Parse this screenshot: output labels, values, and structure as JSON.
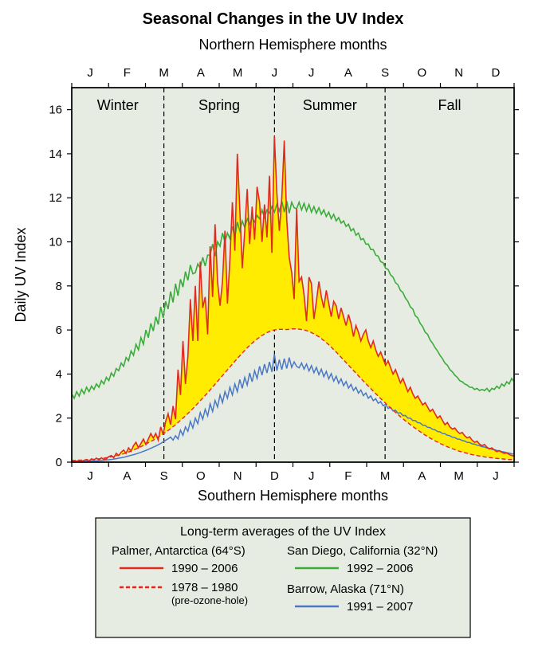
{
  "title": "Seasonal Changes in the UV Index",
  "title_fontsize": 20,
  "title_weight": "bold",
  "top_axis_label": "Northern Hemisphere months",
  "bottom_axis_label": "Southern Hemisphere months",
  "y_axis_label": "Daily UV Index",
  "top_month_letters": [
    "J",
    "F",
    "M",
    "A",
    "M",
    "J",
    "J",
    "A",
    "S",
    "O",
    "N",
    "D"
  ],
  "bottom_month_letters": [
    "J",
    "A",
    "S",
    "O",
    "N",
    "D",
    "J",
    "F",
    "M",
    "A",
    "M",
    "J"
  ],
  "season_labels": [
    "Winter",
    "Spring",
    "Summer",
    "Fall"
  ],
  "season_divider_positions": [
    2.5,
    5.5,
    8.5
  ],
  "season_label_fontsize": 18,
  "axis_label_fontsize": 18,
  "tick_fontsize": 15,
  "y": {
    "min": 0,
    "max": 17,
    "tick_step": 2
  },
  "x": {
    "min": 0,
    "max": 12
  },
  "plot_bg": "#e7ece3",
  "page_bg": "#ffffff",
  "axis_color": "#000000",
  "divider_dash": "6,4",
  "fill_between_color": "#ffec00",
  "series": {
    "palmer_recent": {
      "color": "#e12a1f",
      "width": 1.6,
      "dash": "none",
      "data": [
        0.1,
        0.05,
        0.05,
        0.08,
        0.05,
        0.08,
        0.12,
        0.05,
        0.15,
        0.1,
        0.18,
        0.1,
        0.2,
        0.12,
        0.15,
        0.25,
        0.3,
        0.2,
        0.4,
        0.3,
        0.45,
        0.55,
        0.4,
        0.65,
        0.5,
        0.75,
        0.9,
        0.65,
        0.85,
        1.05,
        0.8,
        1.05,
        1.3,
        1.1,
        1.3,
        1.0,
        1.6,
        1.25,
        1.85,
        2.2,
        1.7,
        2.55,
        1.95,
        4.2,
        3.05,
        5.5,
        3.55,
        4.8,
        7.4,
        5.5,
        8.0,
        5.5,
        9.1,
        7.0,
        7.5,
        5.8,
        9.8,
        7.5,
        10.8,
        8.2,
        7.1,
        8.2,
        10.5,
        7.2,
        9.2,
        11.8,
        9.6,
        14.0,
        11.5,
        8.8,
        10.5,
        12.4,
        9.9,
        11.6,
        10.1,
        12.5,
        11.8,
        10.0,
        11.7,
        10.2,
        13.0,
        9.5,
        14.8,
        12.2,
        10.5,
        12.0,
        14.6,
        11.0,
        9.3,
        8.6,
        7.4,
        11.5,
        8.2,
        8.4,
        7.6,
        6.4,
        8.4,
        8.1,
        6.5,
        7.3,
        8.2,
        7.5,
        7.0,
        7.8,
        7.2,
        6.6,
        7.3,
        7.1,
        6.5,
        7.0,
        6.6,
        6.2,
        6.7,
        6.3,
        5.7,
        6.2,
        5.9,
        5.5,
        5.8,
        6.0,
        5.5,
        5.2,
        5.5,
        5.1,
        4.8,
        5.0,
        4.7,
        4.4,
        4.6,
        4.3,
        4.0,
        4.2,
        3.9,
        3.6,
        3.8,
        3.5,
        3.2,
        3.4,
        3.1,
        2.9,
        3.0,
        2.8,
        2.6,
        2.7,
        2.5,
        2.3,
        2.4,
        2.2,
        2.0,
        2.1,
        1.9,
        1.7,
        1.8,
        1.6,
        1.5,
        1.55,
        1.4,
        1.3,
        1.35,
        1.2,
        1.1,
        1.15,
        1.0,
        0.9,
        0.95,
        0.82,
        0.75,
        0.8,
        0.68,
        0.6,
        0.65,
        0.55,
        0.48,
        0.52,
        0.45,
        0.4,
        0.42,
        0.35,
        0.3,
        0.28
      ]
    },
    "palmer_pre": {
      "color": "#e12a1f",
      "width": 1.4,
      "dash": "5,3",
      "data": [
        0.08,
        0.08,
        0.08,
        0.09,
        0.09,
        0.1,
        0.1,
        0.11,
        0.12,
        0.13,
        0.14,
        0.15,
        0.16,
        0.18,
        0.2,
        0.22,
        0.24,
        0.26,
        0.29,
        0.32,
        0.35,
        0.38,
        0.42,
        0.46,
        0.5,
        0.55,
        0.6,
        0.65,
        0.7,
        0.76,
        0.82,
        0.88,
        0.94,
        1.0,
        1.07,
        1.14,
        1.21,
        1.28,
        1.36,
        1.44,
        1.52,
        1.61,
        1.7,
        1.8,
        1.9,
        2.0,
        2.1,
        2.21,
        2.32,
        2.43,
        2.55,
        2.67,
        2.79,
        2.91,
        3.03,
        3.15,
        3.28,
        3.41,
        3.54,
        3.67,
        3.8,
        3.93,
        4.06,
        4.19,
        4.32,
        4.45,
        4.58,
        4.71,
        4.83,
        4.95,
        5.07,
        5.19,
        5.3,
        5.4,
        5.5,
        5.59,
        5.67,
        5.75,
        5.82,
        5.88,
        5.93,
        5.97,
        6.0,
        6.02,
        6.03,
        6.03,
        6.02,
        6.02,
        6.03,
        6.05,
        6.05,
        6.05,
        6.04,
        6.02,
        6.0,
        5.97,
        5.93,
        5.88,
        5.82,
        5.76,
        5.69,
        5.61,
        5.52,
        5.43,
        5.33,
        5.22,
        5.11,
        5.0,
        4.88,
        4.76,
        4.64,
        4.52,
        4.4,
        4.28,
        4.16,
        4.04,
        3.92,
        3.8,
        3.68,
        3.57,
        3.45,
        3.34,
        3.22,
        3.11,
        3.0,
        2.89,
        2.78,
        2.67,
        2.56,
        2.46,
        2.36,
        2.26,
        2.16,
        2.06,
        1.97,
        1.88,
        1.79,
        1.7,
        1.62,
        1.54,
        1.46,
        1.38,
        1.3,
        1.23,
        1.16,
        1.09,
        1.03,
        0.97,
        0.91,
        0.85,
        0.8,
        0.75,
        0.7,
        0.65,
        0.61,
        0.57,
        0.53,
        0.49,
        0.46,
        0.43,
        0.4,
        0.37,
        0.34,
        0.32,
        0.3,
        0.28,
        0.26,
        0.24,
        0.22,
        0.21,
        0.2,
        0.18,
        0.17,
        0.16,
        0.15,
        0.14,
        0.13,
        0.12,
        0.12,
        0.11
      ]
    },
    "sandiego": {
      "color": "#3bab3b",
      "width": 1.6,
      "dash": "none",
      "data": [
        3.1,
        2.9,
        3.2,
        3.0,
        3.3,
        3.1,
        3.4,
        3.2,
        3.45,
        3.3,
        3.55,
        3.4,
        3.7,
        3.55,
        3.85,
        3.7,
        4.05,
        3.9,
        4.25,
        4.15,
        4.5,
        4.35,
        4.75,
        4.6,
        5.05,
        4.85,
        5.35,
        5.1,
        5.65,
        5.35,
        6.0,
        5.65,
        6.3,
        5.95,
        6.6,
        6.25,
        7.05,
        6.55,
        7.3,
        6.95,
        7.75,
        7.25,
        8.1,
        7.55,
        8.3,
        7.95,
        8.65,
        8.25,
        8.95,
        8.55,
        8.6,
        9.0,
        8.8,
        9.3,
        8.9,
        9.4,
        9.4,
        9.9,
        9.35,
        10.0,
        9.8,
        10.4,
        10.0,
        10.4,
        10.15,
        10.7,
        10.2,
        10.9,
        10.5,
        10.95,
        10.65,
        11.05,
        10.8,
        11.1,
        10.9,
        11.2,
        11.05,
        11.45,
        11.1,
        11.45,
        11.3,
        11.6,
        11.35,
        11.7,
        11.4,
        11.85,
        11.35,
        11.85,
        11.3,
        11.8,
        11.55,
        11.5,
        11.8,
        11.45,
        11.75,
        11.4,
        11.7,
        11.35,
        11.6,
        11.3,
        11.55,
        11.25,
        11.45,
        11.15,
        11.35,
        11.05,
        11.25,
        10.95,
        11.1,
        10.85,
        10.95,
        10.7,
        10.8,
        10.5,
        10.6,
        10.3,
        10.4,
        10.1,
        10.15,
        9.9,
        9.9,
        9.65,
        9.65,
        9.4,
        9.35,
        9.1,
        9.05,
        8.8,
        8.75,
        8.5,
        8.4,
        8.15,
        8.05,
        7.8,
        7.7,
        7.45,
        7.3,
        7.05,
        6.95,
        6.65,
        6.55,
        6.3,
        6.15,
        5.9,
        5.8,
        5.55,
        5.4,
        5.2,
        5.05,
        4.85,
        4.7,
        4.5,
        4.4,
        4.2,
        4.1,
        3.95,
        3.85,
        3.7,
        3.65,
        3.55,
        3.5,
        3.4,
        3.4,
        3.3,
        3.35,
        3.25,
        3.3,
        3.25,
        3.35,
        3.2,
        3.35,
        3.3,
        3.45,
        3.35,
        3.55,
        3.45,
        3.65,
        3.55,
        3.8,
        3.65
      ]
    },
    "barrow": {
      "color": "#4b78c4",
      "width": 1.5,
      "dash": "none",
      "data": [
        0.02,
        0.02,
        0.02,
        0.03,
        0.03,
        0.03,
        0.04,
        0.04,
        0.05,
        0.05,
        0.06,
        0.07,
        0.08,
        0.09,
        0.1,
        0.11,
        0.12,
        0.14,
        0.16,
        0.18,
        0.2,
        0.22,
        0.25,
        0.28,
        0.31,
        0.34,
        0.37,
        0.41,
        0.45,
        0.49,
        0.53,
        0.58,
        0.63,
        0.68,
        0.73,
        0.79,
        0.85,
        0.92,
        0.99,
        1.06,
        1.14,
        1.0,
        1.2,
        1.05,
        1.45,
        1.22,
        1.6,
        1.4,
        1.85,
        1.55,
        2.0,
        1.75,
        2.25,
        1.95,
        2.4,
        2.1,
        2.65,
        2.3,
        2.8,
        2.5,
        3.05,
        2.7,
        3.2,
        2.9,
        3.4,
        3.05,
        3.55,
        3.2,
        3.75,
        3.35,
        3.85,
        3.5,
        4.05,
        3.65,
        4.15,
        3.8,
        4.35,
        3.95,
        4.45,
        4.05,
        4.55,
        4.1,
        4.9,
        4.15,
        4.65,
        4.2,
        4.7,
        4.25,
        4.75,
        4.3,
        4.55,
        4.35,
        4.28,
        4.5,
        4.22,
        4.45,
        4.14,
        4.38,
        4.06,
        4.3,
        3.97,
        4.22,
        3.88,
        4.12,
        3.78,
        4.02,
        3.68,
        3.9,
        3.58,
        3.78,
        3.47,
        3.66,
        3.36,
        3.53,
        3.25,
        3.4,
        3.13,
        3.27,
        3.02,
        3.14,
        2.9,
        3.01,
        2.79,
        2.88,
        2.67,
        2.75,
        2.56,
        2.62,
        2.44,
        2.49,
        2.33,
        2.36,
        2.22,
        2.24,
        2.11,
        2.12,
        2.0,
        2.0,
        1.89,
        1.89,
        1.79,
        1.78,
        1.68,
        1.67,
        1.58,
        1.57,
        1.49,
        1.47,
        1.39,
        1.38,
        1.3,
        1.29,
        1.22,
        1.2,
        1.13,
        1.12,
        1.05,
        1.04,
        0.98,
        0.96,
        0.9,
        0.89,
        0.83,
        0.82,
        0.77,
        0.75,
        0.7,
        0.69,
        0.64,
        0.63,
        0.58,
        0.57,
        0.53,
        0.52,
        0.48,
        0.46,
        0.43,
        0.41,
        0.38,
        0.36
      ]
    }
  },
  "legend": {
    "title": "Long-term averages of the UV Index",
    "bg": "#e7ece3",
    "border": "#000000",
    "fontsize_title": 16,
    "fontsize_label": 15,
    "items": [
      {
        "headline": "Palmer, Antarctica (64°S)",
        "lines": [
          {
            "label": "1990 – 2006",
            "color": "#e12a1f",
            "dash": "none"
          },
          {
            "label": "1978 – 1980",
            "sublabel": "(pre-ozone-hole)",
            "color": "#e12a1f",
            "dash": "5,3"
          }
        ]
      },
      {
        "headline": "San Diego, California (32°N)",
        "lines": [
          {
            "label": "1992 – 2006",
            "color": "#3bab3b",
            "dash": "none"
          }
        ]
      },
      {
        "headline": "Barrow, Alaska (71°N)",
        "lines": [
          {
            "label": "1991 – 2007",
            "color": "#4b78c4",
            "dash": "none"
          }
        ]
      }
    ]
  }
}
